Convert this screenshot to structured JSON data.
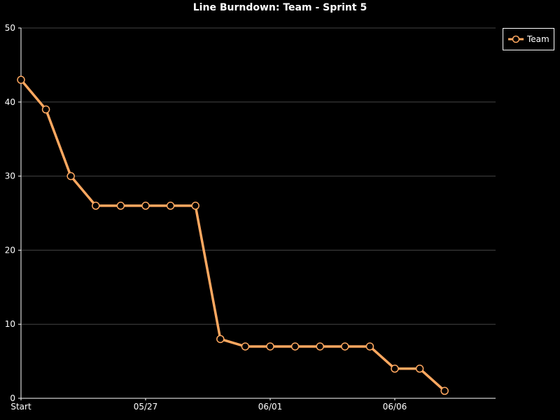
{
  "chart_data": {
    "type": "line",
    "title": "Line Burndown: Team - Sprint 5",
    "xlabel": "",
    "ylabel": "",
    "ylim": [
      0,
      50
    ],
    "yticks": [
      0,
      10,
      20,
      30,
      40,
      50
    ],
    "x_tick_labels": [
      {
        "index": 0,
        "label": "Start"
      },
      {
        "index": 5,
        "label": "05/27"
      },
      {
        "index": 10,
        "label": "06/01"
      },
      {
        "index": 15,
        "label": "06/06"
      }
    ],
    "x_count": 19,
    "grid": true,
    "legend": "top-right",
    "series": [
      {
        "name": "Team",
        "color": "#ffa860",
        "values": [
          43,
          39,
          30,
          26,
          26,
          26,
          26,
          26,
          8,
          7,
          7,
          7,
          7,
          7,
          7,
          4,
          4,
          1
        ]
      }
    ]
  }
}
